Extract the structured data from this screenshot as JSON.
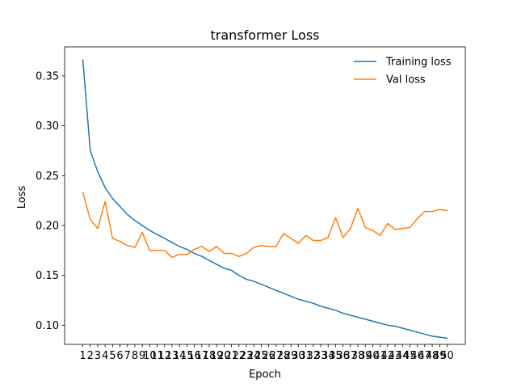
{
  "chart_data": {
    "type": "line",
    "title": "transformer Loss",
    "xlabel": "Epoch",
    "ylabel": "Loss",
    "x": [
      1,
      2,
      3,
      4,
      5,
      6,
      7,
      8,
      9,
      10,
      11,
      12,
      13,
      14,
      15,
      16,
      17,
      18,
      19,
      20,
      21,
      22,
      23,
      24,
      25,
      26,
      27,
      28,
      29,
      30,
      31,
      32,
      33,
      34,
      35,
      36,
      37,
      38,
      39,
      40,
      41,
      42,
      43,
      44,
      45,
      46,
      47,
      48,
      49,
      50
    ],
    "xticks": [
      "1",
      "2",
      "3",
      "4",
      "5",
      "6",
      "7",
      "8",
      "9",
      "10",
      "11",
      "12",
      "13",
      "14",
      "15",
      "16",
      "17",
      "18",
      "19",
      "20",
      "21",
      "22",
      "23",
      "24",
      "25",
      "26",
      "27",
      "28",
      "29",
      "30",
      "31",
      "32",
      "33",
      "34",
      "35",
      "36",
      "37",
      "38",
      "39",
      "40",
      "41",
      "42",
      "43",
      "44",
      "45",
      "46",
      "47",
      "48",
      "49",
      "50"
    ],
    "yticks": [
      0.1,
      0.15,
      0.2,
      0.25,
      0.3,
      0.35
    ],
    "yticklabels": [
      "0.10",
      "0.15",
      "0.20",
      "0.25",
      "0.30",
      "0.35"
    ],
    "xlim": [
      -1.45,
      52.45
    ],
    "ylim": [
      0.0808,
      0.3791
    ],
    "grid": false,
    "legend_position": "top-right",
    "series": [
      {
        "name": "Training loss",
        "color": "#1f77b4",
        "values": [
          0.366,
          0.275,
          0.254,
          0.238,
          0.227,
          0.219,
          0.211,
          0.205,
          0.2,
          0.195,
          0.191,
          0.187,
          0.183,
          0.179,
          0.176,
          0.172,
          0.169,
          0.165,
          0.161,
          0.157,
          0.155,
          0.15,
          0.146,
          0.144,
          0.141,
          0.138,
          0.135,
          0.132,
          0.129,
          0.126,
          0.124,
          0.122,
          0.119,
          0.117,
          0.115,
          0.112,
          0.11,
          0.108,
          0.106,
          0.104,
          0.102,
          0.1,
          0.099,
          0.097,
          0.095,
          0.093,
          0.091,
          0.089,
          0.088,
          0.087
        ]
      },
      {
        "name": "Val loss",
        "color": "#ff7f0e",
        "values": [
          0.233,
          0.206,
          0.197,
          0.224,
          0.187,
          0.184,
          0.18,
          0.178,
          0.193,
          0.175,
          0.175,
          0.175,
          0.168,
          0.171,
          0.171,
          0.176,
          0.179,
          0.174,
          0.179,
          0.172,
          0.172,
          0.169,
          0.172,
          0.178,
          0.18,
          0.179,
          0.179,
          0.192,
          0.187,
          0.182,
          0.19,
          0.185,
          0.185,
          0.188,
          0.208,
          0.188,
          0.197,
          0.217,
          0.198,
          0.195,
          0.19,
          0.202,
          0.196,
          0.197,
          0.198,
          0.207,
          0.214,
          0.214,
          0.216,
          0.215
        ]
      }
    ]
  }
}
